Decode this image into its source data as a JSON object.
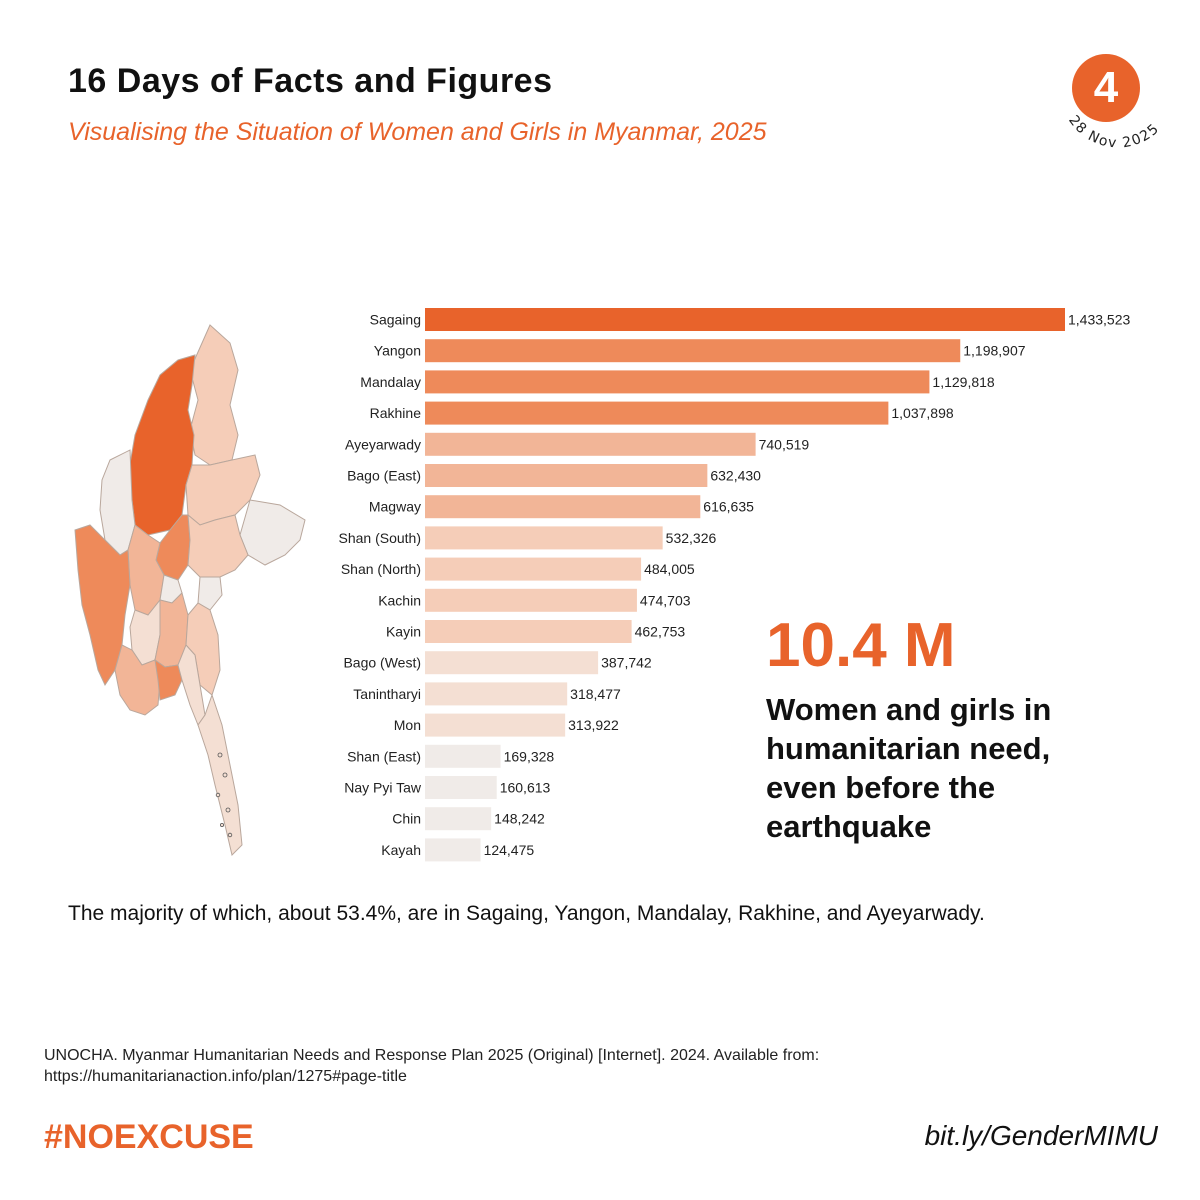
{
  "header": {
    "title": "16 Days of Facts and Figures",
    "subtitle": "Visualising the Situation of Women and Girls in Myanmar, 2025",
    "day_number": "4",
    "date": "28 Nov 2025"
  },
  "colors": {
    "accent": "#e8632b",
    "scale": [
      "#e8632b",
      "#ee8a5a",
      "#f2b597",
      "#f5cdb8",
      "#f4dfd3",
      "#f0ebe8"
    ]
  },
  "chart_data": {
    "type": "bar",
    "orientation": "horizontal",
    "categories": [
      "Sagaing",
      "Yangon",
      "Mandalay",
      "Rakhine",
      "Ayeyarwady",
      "Bago (East)",
      "Magway",
      "Shan (South)",
      "Shan (North)",
      "Kachin",
      "Kayin",
      "Bago (West)",
      "Tanintharyi",
      "Mon",
      "Shan (East)",
      "Nay Pyi Taw",
      "Chin",
      "Kayah"
    ],
    "values": [
      1433523,
      1198907,
      1129818,
      1037898,
      740519,
      632430,
      616635,
      532326,
      484005,
      474703,
      462753,
      387742,
      318477,
      313922,
      169328,
      160613,
      148242,
      124475
    ],
    "value_labels": [
      "1,433,523",
      "1,198,907",
      "1,129,818",
      "1,037,898",
      "740,519",
      "632,430",
      "616,635",
      "532,326",
      "484,005",
      "474,703",
      "462,753",
      "387,742",
      "318,477",
      "313,922",
      "169,328",
      "160,613",
      "148,242",
      "124,475"
    ],
    "xlim": [
      0,
      1433523
    ],
    "grid": false,
    "legend": "none"
  },
  "highlight": {
    "number": "10.4 M",
    "caption": "Women and girls in humanitarian need, even before the earthquake"
  },
  "summary": "The majority of which, about 53.4%, are in Sagaing, Yangon, Mandalay, Rakhine, and Ayeyarwady.",
  "source": "UNOCHA. Myanmar Humanitarian Needs and Response Plan 2025 (Original) [Internet]. 2024. Available from: https://humanitarianaction.info/plan/1275#page-title",
  "footer": {
    "hashtag": "#NOEXCUSE",
    "link": "bit.ly/GenderMIMU"
  }
}
